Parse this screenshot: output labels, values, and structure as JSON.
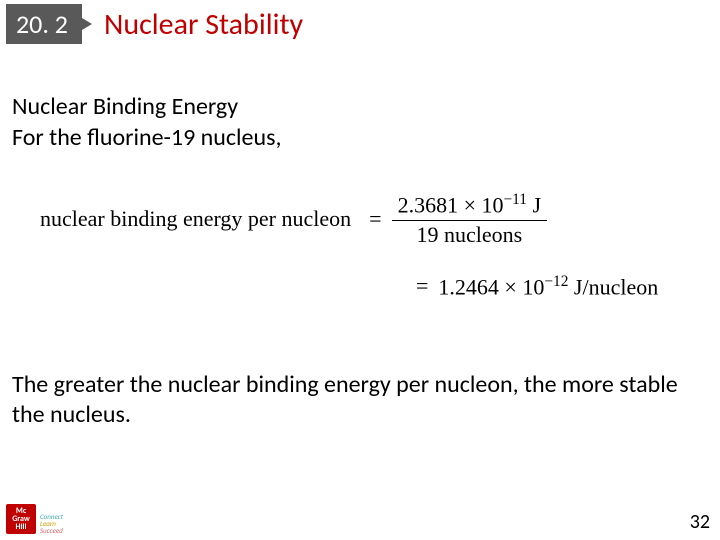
{
  "header": {
    "section_number": "20. 2",
    "title": "Nuclear Stability"
  },
  "content": {
    "subtitle": "Nuclear Binding Energy",
    "line2": "For the fluorine-19 nucleus,",
    "equation": {
      "label": "nuclear binding energy per nucleon",
      "eq_sign": "=",
      "numerator": "2.3681 × 10⁻¹¹ J",
      "denominator": "19 nucleons",
      "result": "1.2464 × 10⁻¹² J/nucleon"
    },
    "conclusion": "The greater the nuclear binding energy per nucleon, the more stable the nucleus."
  },
  "footer": {
    "page_number": "32",
    "logo1_line1": "Mc",
    "logo1_line2": "Graw",
    "logo1_line3": "Hill",
    "logo2_line1": "Connect",
    "logo2_line2": "Learn",
    "logo2_line3": "Succeed"
  }
}
